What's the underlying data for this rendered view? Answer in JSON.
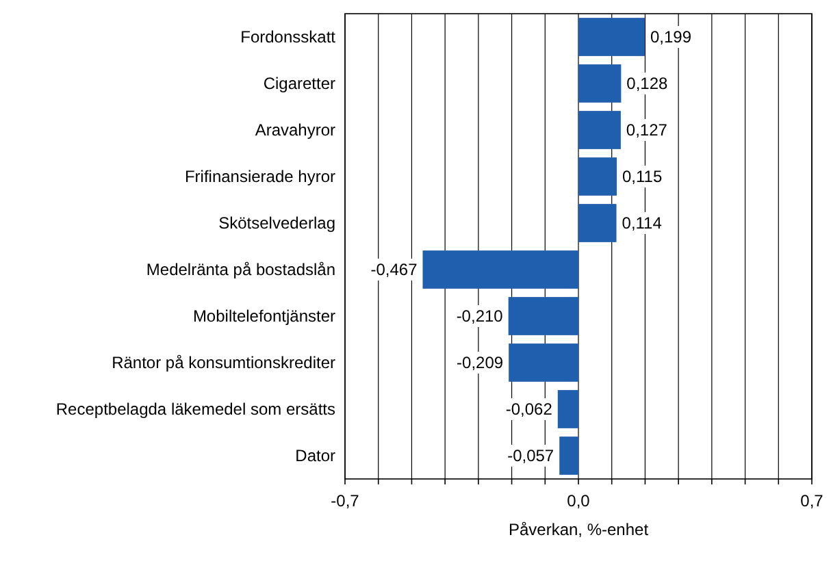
{
  "chart_data": {
    "type": "bar",
    "orientation": "horizontal",
    "xlabel": "Påverkan, %-enhet",
    "categories": [
      "Fordonsskatt",
      "Cigaretter",
      "Aravahyror",
      "Frifinansierade hyror",
      "Skötselvederlag",
      "Medelränta på bostadslån",
      "Mobiltelefontjänster",
      "Räntor på konsumtionskrediter",
      "Receptbelagda läkemedel som ersätts",
      "Dator"
    ],
    "values": [
      0.199,
      0.128,
      0.127,
      0.115,
      0.114,
      -0.467,
      -0.21,
      -0.209,
      -0.062,
      -0.057
    ],
    "value_labels": [
      "0,199",
      "0,128",
      "0,127",
      "0,115",
      "0,114",
      "-0,467",
      "-0,210",
      "-0,209",
      "-0,062",
      "-0,057"
    ],
    "color": "#1f5fad",
    "xlim": [
      -0.7,
      0.7
    ],
    "xticks": [
      {
        "value": -0.7,
        "label": "-0,7"
      },
      {
        "value": -0.6,
        "label": null
      },
      {
        "value": -0.5,
        "label": null
      },
      {
        "value": -0.4,
        "label": null
      },
      {
        "value": -0.3,
        "label": null
      },
      {
        "value": -0.2,
        "label": null
      },
      {
        "value": -0.1,
        "label": null
      },
      {
        "value": 0,
        "label": "0,0"
      },
      {
        "value": 0.1,
        "label": null
      },
      {
        "value": 0.2,
        "label": null
      },
      {
        "value": 0.3,
        "label": null
      },
      {
        "value": 0.4,
        "label": null
      },
      {
        "value": 0.5,
        "label": null
      },
      {
        "value": 0.6,
        "label": null
      },
      {
        "value": 0.7,
        "label": "0,7"
      }
    ],
    "grid": "x"
  }
}
